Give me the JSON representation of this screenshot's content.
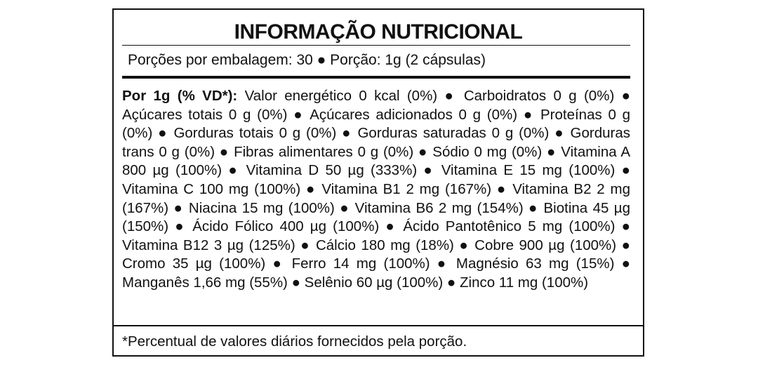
{
  "label": {
    "title": "INFORMAÇÃO NUTRICIONAL",
    "serving_line": "Porções por embalagem: 30 ● Porção: 1g (2 cápsulas)",
    "per_portion_lead": "Por 1g (% VD*):",
    "nutrients_text": "Valor energético 0 kcal (0%) ● Carboidratos 0 g (0%) ● Açúcares totais 0 g (0%) ● Açúcares adicionados 0 g (0%) ● Proteínas 0 g (0%) ● Gorduras totais 0 g (0%) ● Gorduras saturadas 0 g (0%) ● Gorduras trans 0 g (0%) ● Fibras alimentares 0 g (0%) ● Sódio 0 mg (0%) ● Vitamina A 800 µg (100%) ● Vitamina D 50 µg (333%) ● Vitamina E 15 mg (100%) ● Vitamina C 100 mg (100%) ● Vitamina B1 2 mg (167%) ● Vitamina B2 2 mg (167%) ● Niacina 15 mg (100%) ● Vitamina B6 2 mg (154%) ● Biotina 45 µg (150%) ● Ácido Fólico 400 µg (100%) ● Ácido Pantotênico 5 mg (100%) ● Vitamina B12 3 µg (125%) ● Cálcio 180 mg (18%) ● Cobre 900 µg (100%) ● Cromo 35 µg (100%) ● Ferro 14 mg (100%) ● Magnésio 63 mg (15%) ● Manganês 1,66 mg (55%) ● Selênio 60 µg (100%) ● Zinco 11 mg (100%)",
    "footnote": "*Percentual de valores diários fornecidos pela porção."
  }
}
